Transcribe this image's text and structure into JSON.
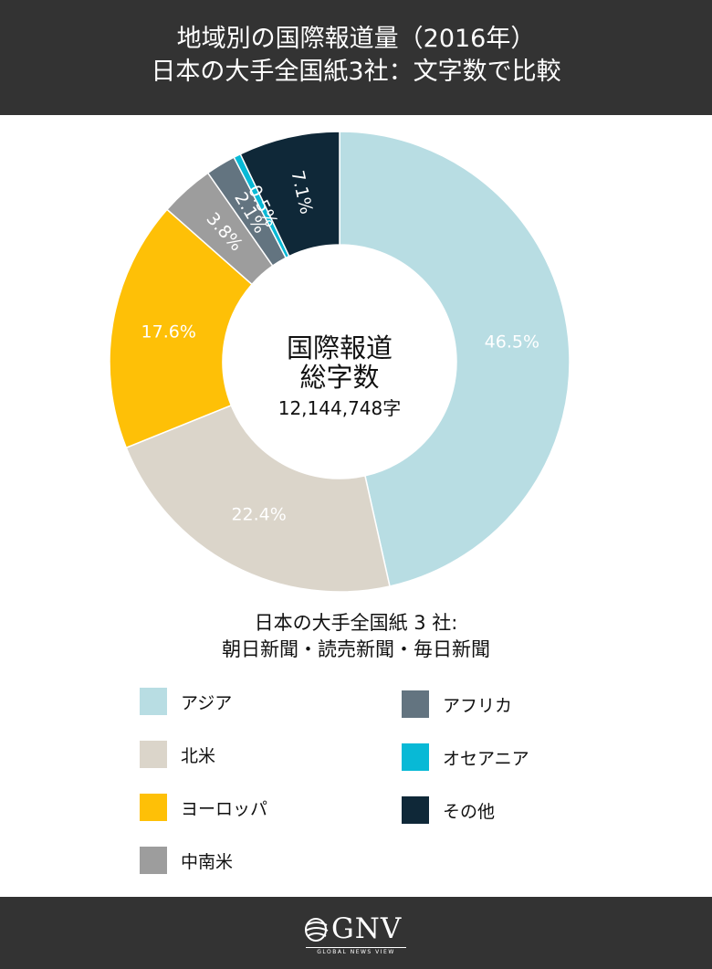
{
  "header": {
    "title_line1": "地域別の国際報道量（2016年）",
    "title_line2": "日本の大手全国紙3社：文字数で比較"
  },
  "chart_data": {
    "type": "pie",
    "variant": "donut",
    "title": "地域別の国際報道量（2016年）",
    "subtitle": "日本の大手全国紙3社：文字数で比較",
    "center_label": [
      "国際報道",
      "総字数",
      "12,144,748字"
    ],
    "unit": "%",
    "slices": [
      {
        "name": "アジア",
        "value": 46.5,
        "label": "46.5%",
        "color": "#b8dde3"
      },
      {
        "name": "北米",
        "value": 22.4,
        "label": "22.4%",
        "color": "#dbd5ca"
      },
      {
        "name": "ヨーロッパ",
        "value": 17.6,
        "label": "17.6%",
        "color": "#fec007"
      },
      {
        "name": "中南米",
        "value": 3.8,
        "label": "3.8%",
        "color": "#9d9d9d"
      },
      {
        "name": "アフリカ",
        "value": 2.1,
        "label": "2.1%",
        "color": "#637480"
      },
      {
        "name": "オセアニア",
        "value": 0.5,
        "label": "0.5%",
        "color": "#08b9d6"
      },
      {
        "name": "その他",
        "value": 7.1,
        "label": "7.1%",
        "color": "#0f2838"
      }
    ],
    "start_angle": "12 o'clock",
    "direction": "clockwise",
    "legend_placement": "bottom"
  },
  "note": {
    "line1": "日本の大手全国紙 3 社:",
    "line2": "朝日新聞・読売新聞・毎日新聞"
  },
  "footer": {
    "logo_text": "GNV",
    "logo_tagline": "GLOBAL NEWS VIEW"
  }
}
